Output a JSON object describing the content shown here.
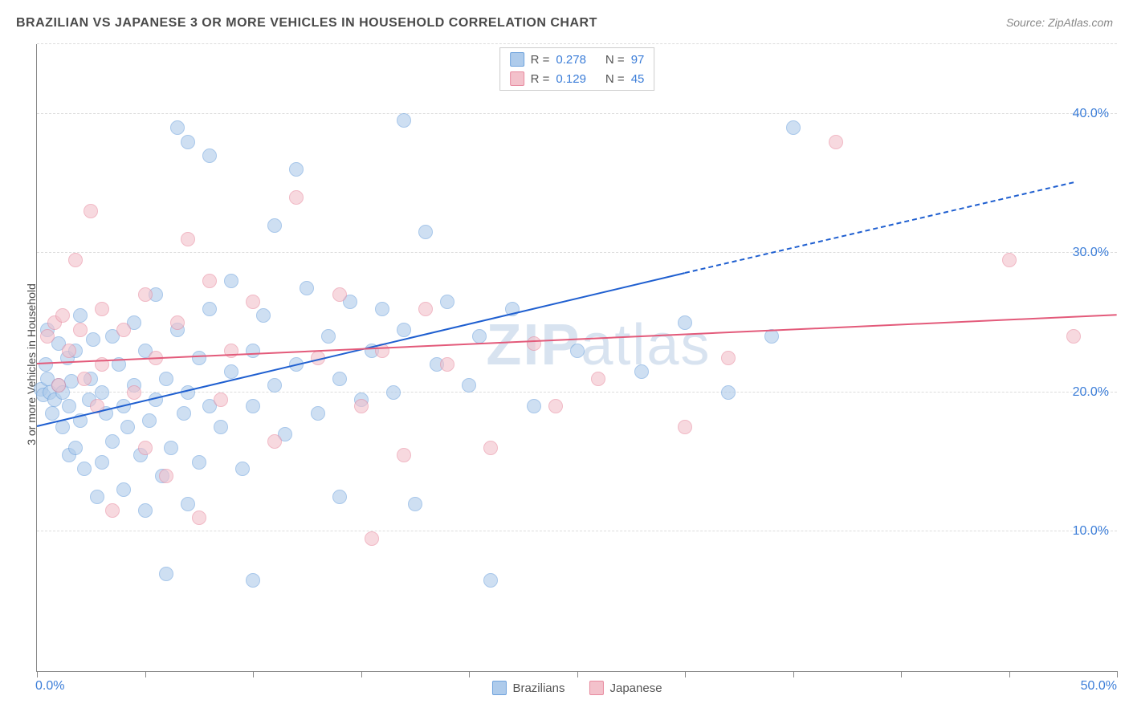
{
  "title": "BRAZILIAN VS JAPANESE 3 OR MORE VEHICLES IN HOUSEHOLD CORRELATION CHART",
  "source": "Source: ZipAtlas.com",
  "watermark_bold": "ZIP",
  "watermark_light": "atlas",
  "chart": {
    "type": "scatter",
    "ylabel": "3 or more Vehicles in Household",
    "xlim": [
      0,
      50
    ],
    "ylim": [
      0,
      45
    ],
    "x_ticks": [
      0,
      5,
      10,
      15,
      20,
      25,
      30,
      35,
      40,
      45,
      50
    ],
    "x_origin_label": "0.0%",
    "x_end_label": "50.0%",
    "y_gridlines": [
      10,
      20,
      30,
      40,
      45
    ],
    "y_tick_labels": {
      "10": "10.0%",
      "20": "20.0%",
      "30": "30.0%",
      "40": "40.0%"
    },
    "point_radius": 9,
    "point_border_width": 1.5,
    "axis_color": "#888888",
    "grid_color": "#dddddd",
    "label_color": "#3b7dd8",
    "title_color": "#4a4a4a",
    "background_color": "#ffffff",
    "title_fontsize": 16,
    "label_fontsize": 14,
    "tick_fontsize": 16
  },
  "series": [
    {
      "name": "Brazilians",
      "fill": "#aecbeb",
      "stroke": "#6fa3dd",
      "fill_opacity": 0.6,
      "trend_color": "#1f5fd0",
      "trend_width": 2.5,
      "trend_start": [
        0,
        17.5
      ],
      "trend_solid_end": [
        30,
        28.5
      ],
      "trend_dashed_end": [
        48,
        35.0
      ],
      "R": "0.278",
      "N": "97",
      "points": [
        [
          0.2,
          20.2
        ],
        [
          0.3,
          19.8
        ],
        [
          0.4,
          22.0
        ],
        [
          0.5,
          24.5
        ],
        [
          0.5,
          21.0
        ],
        [
          0.6,
          20.0
        ],
        [
          0.7,
          18.5
        ],
        [
          0.8,
          19.5
        ],
        [
          1.0,
          23.5
        ],
        [
          1.0,
          20.5
        ],
        [
          1.2,
          20.0
        ],
        [
          1.2,
          17.5
        ],
        [
          1.4,
          22.5
        ],
        [
          1.5,
          19.0
        ],
        [
          1.5,
          15.5
        ],
        [
          1.6,
          20.8
        ],
        [
          1.8,
          23.0
        ],
        [
          1.8,
          16.0
        ],
        [
          2.0,
          25.5
        ],
        [
          2.0,
          18.0
        ],
        [
          2.2,
          14.5
        ],
        [
          2.4,
          19.5
        ],
        [
          2.5,
          21.0
        ],
        [
          2.6,
          23.8
        ],
        [
          2.8,
          12.5
        ],
        [
          3.0,
          15.0
        ],
        [
          3.0,
          20.0
        ],
        [
          3.2,
          18.5
        ],
        [
          3.5,
          24.0
        ],
        [
          3.5,
          16.5
        ],
        [
          3.8,
          22.0
        ],
        [
          4.0,
          19.0
        ],
        [
          4.0,
          13.0
        ],
        [
          4.2,
          17.5
        ],
        [
          4.5,
          25.0
        ],
        [
          4.5,
          20.5
        ],
        [
          4.8,
          15.5
        ],
        [
          5.0,
          23.0
        ],
        [
          5.0,
          11.5
        ],
        [
          5.2,
          18.0
        ],
        [
          5.5,
          27.0
        ],
        [
          5.5,
          19.5
        ],
        [
          5.8,
          14.0
        ],
        [
          6.0,
          7.0
        ],
        [
          6.0,
          21.0
        ],
        [
          6.2,
          16.0
        ],
        [
          6.5,
          39.0
        ],
        [
          6.5,
          24.5
        ],
        [
          6.8,
          18.5
        ],
        [
          7.0,
          38.0
        ],
        [
          7.0,
          20.0
        ],
        [
          7.0,
          12.0
        ],
        [
          7.5,
          22.5
        ],
        [
          7.5,
          15.0
        ],
        [
          8.0,
          37.0
        ],
        [
          8.0,
          26.0
        ],
        [
          8.0,
          19.0
        ],
        [
          8.5,
          17.5
        ],
        [
          9.0,
          28.0
        ],
        [
          9.0,
          21.5
        ],
        [
          9.5,
          14.5
        ],
        [
          10.0,
          6.5
        ],
        [
          10.0,
          23.0
        ],
        [
          10.0,
          19.0
        ],
        [
          10.5,
          25.5
        ],
        [
          11.0,
          32.0
        ],
        [
          11.0,
          20.5
        ],
        [
          11.5,
          17.0
        ],
        [
          12.0,
          36.0
        ],
        [
          12.0,
          22.0
        ],
        [
          12.5,
          27.5
        ],
        [
          13.0,
          18.5
        ],
        [
          13.5,
          24.0
        ],
        [
          14.0,
          12.5
        ],
        [
          14.0,
          21.0
        ],
        [
          14.5,
          26.5
        ],
        [
          15.0,
          19.5
        ],
        [
          15.5,
          23.0
        ],
        [
          16.0,
          26.0
        ],
        [
          16.5,
          20.0
        ],
        [
          17.0,
          39.5
        ],
        [
          17.0,
          24.5
        ],
        [
          17.5,
          12.0
        ],
        [
          18.0,
          31.5
        ],
        [
          18.5,
          22.0
        ],
        [
          19.0,
          26.5
        ],
        [
          20.0,
          20.5
        ],
        [
          20.5,
          24.0
        ],
        [
          21.0,
          6.5
        ],
        [
          22.0,
          26.0
        ],
        [
          23.0,
          19.0
        ],
        [
          25.0,
          23.0
        ],
        [
          28.0,
          21.5
        ],
        [
          30.0,
          25.0
        ],
        [
          32.0,
          20.0
        ],
        [
          34.0,
          24.0
        ],
        [
          35.0,
          39.0
        ]
      ]
    },
    {
      "name": "Japanese",
      "fill": "#f3c1cb",
      "stroke": "#e88ba0",
      "fill_opacity": 0.6,
      "trend_color": "#e35a7a",
      "trend_width": 2.5,
      "trend_start": [
        0,
        22.0
      ],
      "trend_solid_end": [
        50,
        25.5
      ],
      "trend_dashed_end": null,
      "R": "0.129",
      "N": "45",
      "points": [
        [
          0.5,
          24.0
        ],
        [
          0.8,
          25.0
        ],
        [
          1.0,
          20.5
        ],
        [
          1.2,
          25.5
        ],
        [
          1.5,
          23.0
        ],
        [
          1.8,
          29.5
        ],
        [
          2.0,
          24.5
        ],
        [
          2.2,
          21.0
        ],
        [
          2.5,
          33.0
        ],
        [
          2.8,
          19.0
        ],
        [
          3.0,
          26.0
        ],
        [
          3.0,
          22.0
        ],
        [
          3.5,
          11.5
        ],
        [
          4.0,
          24.5
        ],
        [
          4.5,
          20.0
        ],
        [
          5.0,
          16.0
        ],
        [
          5.0,
          27.0
        ],
        [
          5.5,
          22.5
        ],
        [
          6.0,
          14.0
        ],
        [
          6.5,
          25.0
        ],
        [
          7.0,
          31.0
        ],
        [
          7.5,
          11.0
        ],
        [
          8.0,
          28.0
        ],
        [
          8.5,
          19.5
        ],
        [
          9.0,
          23.0
        ],
        [
          10.0,
          26.5
        ],
        [
          11.0,
          16.5
        ],
        [
          12.0,
          34.0
        ],
        [
          13.0,
          22.5
        ],
        [
          14.0,
          27.0
        ],
        [
          15.0,
          19.0
        ],
        [
          15.5,
          9.5
        ],
        [
          16.0,
          23.0
        ],
        [
          17.0,
          15.5
        ],
        [
          18.0,
          26.0
        ],
        [
          19.0,
          22.0
        ],
        [
          21.0,
          16.0
        ],
        [
          23.0,
          23.5
        ],
        [
          24.0,
          19.0
        ],
        [
          26.0,
          21.0
        ],
        [
          30.0,
          17.5
        ],
        [
          32.0,
          22.5
        ],
        [
          37.0,
          38.0
        ],
        [
          45.0,
          29.5
        ],
        [
          48.0,
          24.0
        ]
      ]
    }
  ],
  "legend_top": {
    "r_label": "R =",
    "n_label": "N ="
  },
  "legend_bottom": [
    {
      "swatch_fill": "#aecbeb",
      "swatch_stroke": "#6fa3dd",
      "label": "Brazilians"
    },
    {
      "swatch_fill": "#f3c1cb",
      "swatch_stroke": "#e88ba0",
      "label": "Japanese"
    }
  ]
}
